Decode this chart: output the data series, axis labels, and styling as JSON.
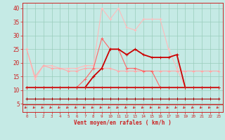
{
  "bg_color": "#c5eae5",
  "grid_color": "#99ccbb",
  "axis_color": "#cc2222",
  "xlabel": "Vent moyen/en rafales ( km/h )",
  "x": [
    0,
    1,
    2,
    3,
    4,
    5,
    6,
    7,
    8,
    9,
    10,
    11,
    12,
    13,
    14,
    15,
    16,
    17,
    18,
    19,
    20,
    21,
    22,
    23
  ],
  "lines": [
    {
      "y": [
        25,
        14,
        19,
        19,
        18,
        18,
        18,
        19,
        19,
        40,
        36,
        40,
        33,
        32,
        36,
        36,
        36,
        25,
        18,
        11,
        11,
        11,
        11,
        11
      ],
      "color": "#ffbbbb",
      "lw": 0.8
    },
    {
      "y": [
        25,
        15,
        19,
        18,
        18,
        17,
        17,
        18,
        18,
        18,
        18,
        17,
        17,
        17,
        17,
        17,
        17,
        17,
        17,
        17,
        17,
        17,
        17,
        17
      ],
      "color": "#ffaaaa",
      "lw": 0.8
    },
    {
      "y": [
        11,
        11,
        11,
        11,
        11,
        11,
        11,
        14,
        18,
        29,
        25,
        25,
        18,
        18,
        17,
        17,
        11,
        11,
        11,
        11,
        11,
        11,
        11,
        11
      ],
      "color": "#ff6666",
      "lw": 0.8
    },
    {
      "y": [
        11,
        11,
        11,
        11,
        11,
        11,
        11,
        11,
        15,
        18,
        25,
        25,
        23,
        25,
        23,
        22,
        22,
        22,
        23,
        11,
        11,
        11,
        11,
        11
      ],
      "color": "#cc0000",
      "lw": 1.3
    },
    {
      "y": [
        11,
        11,
        11,
        11,
        11,
        11,
        11,
        11,
        11,
        11,
        11,
        11,
        11,
        11,
        11,
        11,
        11,
        11,
        11,
        11,
        11,
        11,
        11,
        11
      ],
      "color": "#cc2222",
      "lw": 1.5
    },
    {
      "y": [
        7,
        7,
        7,
        7,
        7,
        7,
        7,
        7,
        7,
        7,
        7,
        7,
        7,
        7,
        7,
        7,
        7,
        7,
        7,
        7,
        7,
        7,
        7,
        7
      ],
      "color": "#aa0000",
      "lw": 0.8
    }
  ],
  "ylim": [
    2,
    42
  ],
  "yticks": [
    5,
    10,
    15,
    20,
    25,
    30,
    35,
    40
  ],
  "xlim": [
    -0.5,
    23.5
  ],
  "hline_y": 4.8
}
